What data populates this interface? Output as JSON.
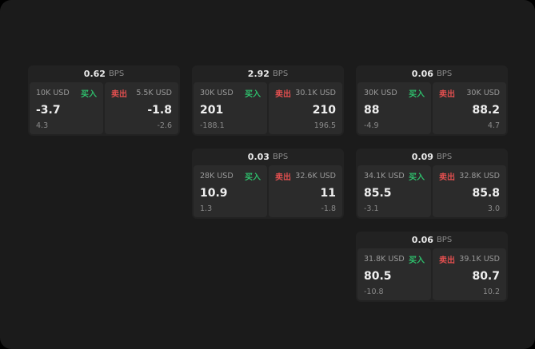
{
  "labels": {
    "bps": "BPS",
    "buy": "买入",
    "sell": "卖出"
  },
  "colors": {
    "buy": "#2ebd6b",
    "sell": "#e14f4f",
    "background": "#1b1b1b",
    "card": "#222222",
    "panel": "#2b2b2b"
  },
  "cards": [
    {
      "bps": "0.62",
      "buy": {
        "size": "10K USD",
        "price": "-3.7",
        "change": "4.3"
      },
      "sell": {
        "size": "5.5K USD",
        "price": "-1.8",
        "change": "-2.6"
      }
    },
    {
      "bps": "2.92",
      "buy": {
        "size": "30K USD",
        "price": "201",
        "change": "-188.1"
      },
      "sell": {
        "size": "30.1K USD",
        "price": "210",
        "change": "196.5"
      }
    },
    {
      "bps": "0.06",
      "buy": {
        "size": "30K USD",
        "price": "88",
        "change": "-4.9"
      },
      "sell": {
        "size": "30K USD",
        "price": "88.2",
        "change": "4.7"
      }
    },
    {
      "bps": "0.03",
      "buy": {
        "size": "28K USD",
        "price": "10.9",
        "change": "1.3"
      },
      "sell": {
        "size": "32.6K USD",
        "price": "11",
        "change": "-1.8"
      }
    },
    {
      "bps": "0.09",
      "buy": {
        "size": "34.1K USD",
        "price": "85.5",
        "change": "-3.1"
      },
      "sell": {
        "size": "32.8K USD",
        "price": "85.8",
        "change": "3.0"
      }
    },
    {
      "bps": "0.06",
      "buy": {
        "size": "31.8K USD",
        "price": "80.5",
        "change": "-10.8"
      },
      "sell": {
        "size": "39.1K USD",
        "price": "80.7",
        "change": "10.2"
      }
    }
  ]
}
